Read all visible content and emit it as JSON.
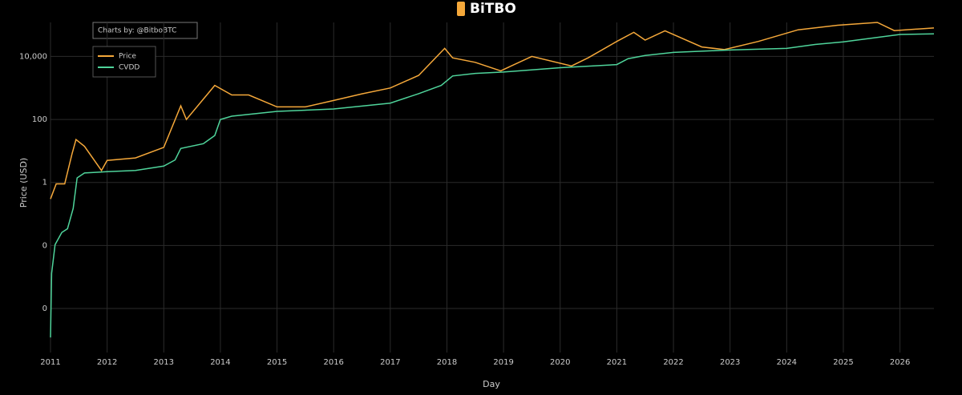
{
  "chart_data": {
    "type": "line",
    "brand": "BiTBO",
    "annotation": "Charts by: @BitboBTC",
    "xlabel": "Day",
    "ylabel": "Price (USD)",
    "log_y": true,
    "grid": true,
    "legend": "upper left",
    "xlim": [
      2011,
      2026.6
    ],
    "xticks": [
      2011,
      2012,
      2013,
      2014,
      2015,
      2016,
      2017,
      2018,
      2019,
      2020,
      2021,
      2022,
      2023,
      2024,
      2025,
      2026
    ],
    "ylim": [
      4e-06,
      120000
    ],
    "yticks": [
      {
        "value": 0.0001,
        "label": "0"
      },
      {
        "value": 0.01,
        "label": "0"
      },
      {
        "value": 1,
        "label": "1"
      },
      {
        "value": 100,
        "label": "100"
      },
      {
        "value": 10000,
        "label": "10,000"
      }
    ],
    "series": [
      {
        "name": "Price",
        "color": "#f5a83a",
        "x": [
          2011.0,
          2011.1,
          2011.25,
          2011.38,
          2011.45,
          2011.6,
          2011.9,
          2012.0,
          2012.5,
          2013.0,
          2013.3,
          2013.4,
          2013.9,
          2014.2,
          2014.5,
          2015.0,
          2015.5,
          2016.0,
          2016.5,
          2017.0,
          2017.5,
          2017.96,
          2018.1,
          2018.5,
          2018.95,
          2019.5,
          2020.2,
          2020.5,
          2021.0,
          2021.3,
          2021.5,
          2021.85,
          2022.5,
          2022.9,
          2023.5,
          2024.2,
          2024.9,
          2025.6,
          2025.9,
          2026.6
        ],
        "values": [
          0.3,
          0.9,
          0.9,
          8,
          23,
          14,
          2.4,
          5,
          6,
          13,
          270,
          100,
          1200,
          600,
          600,
          250,
          250,
          400,
          650,
          1000,
          2500,
          18000,
          9000,
          6500,
          3500,
          10000,
          5000,
          9200,
          30000,
          58000,
          33000,
          65000,
          20000,
          16500,
          30000,
          70000,
          98000,
          120000,
          66000,
          80000
        ]
      },
      {
        "name": "CVDD",
        "color": "#4fd49b",
        "x": [
          2011.0,
          2011.02,
          2011.08,
          2011.2,
          2011.3,
          2011.4,
          2011.47,
          2011.6,
          2012.0,
          2012.5,
          2013.0,
          2013.2,
          2013.3,
          2013.7,
          2013.9,
          2014.0,
          2014.2,
          2015.0,
          2016.0,
          2017.0,
          2017.5,
          2017.9,
          2018.1,
          2018.5,
          2019.0,
          2020.0,
          2021.0,
          2021.2,
          2021.5,
          2022.0,
          2023.0,
          2024.0,
          2024.5,
          2025.0,
          2026.0,
          2026.6
        ],
        "values": [
          1.2e-05,
          0.0013,
          0.0106,
          0.026,
          0.034,
          0.15,
          1.4,
          2.0,
          2.2,
          2.4,
          3.3,
          5.2,
          12,
          17,
          31,
          100,
          127,
          180,
          215,
          330,
          660,
          1200,
          2400,
          2900,
          3200,
          4400,
          5500,
          8500,
          10700,
          13400,
          16000,
          18000,
          24000,
          29000,
          50000,
          52000
        ]
      }
    ]
  }
}
